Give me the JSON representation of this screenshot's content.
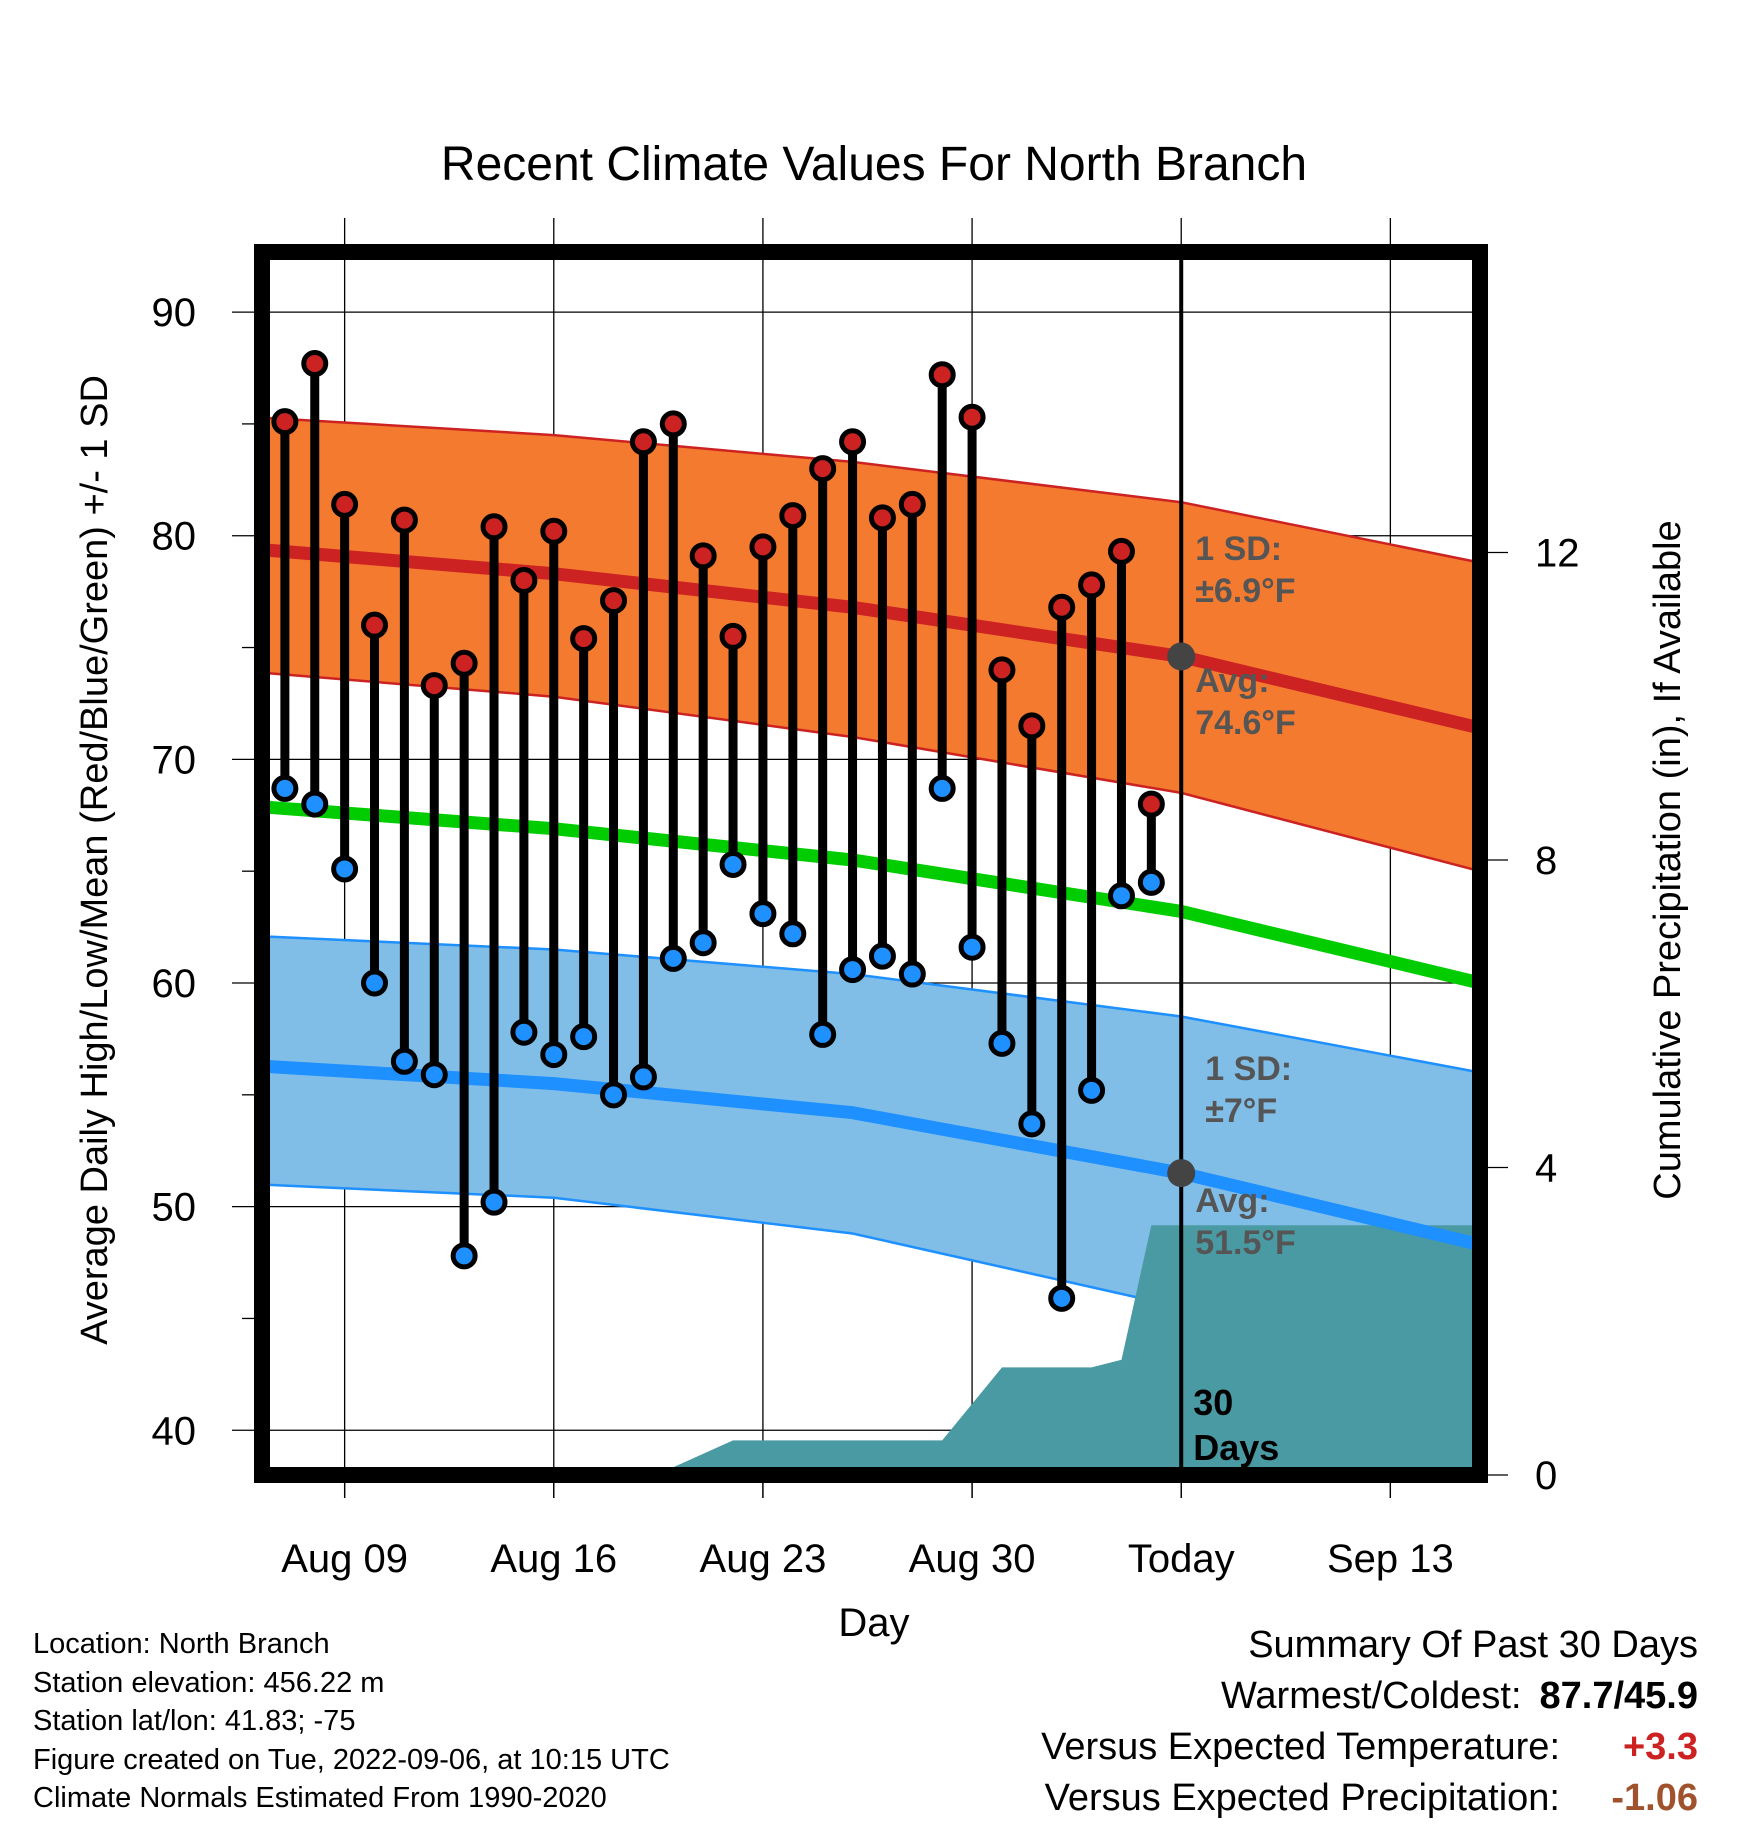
{
  "chart_data": {
    "type": "line",
    "title": "Recent Climate Values For North Branch",
    "xlabel": "Day",
    "ylabel_left": "Average Daily High/Low/Mean (Red/Blue/Green) +/- 1 SD",
    "ylabel_right": "Cumulative Precipitation (in), If Available",
    "ylim_left": [
      38,
      93
    ],
    "ylim_right": [
      0,
      16
    ],
    "xlim": [
      "Aug 06",
      "Sep 16"
    ],
    "x_ticks": [
      {
        "date": "Aug 09",
        "label": "Aug 09"
      },
      {
        "date": "Aug 16",
        "label": "Aug 16"
      },
      {
        "date": "Aug 23",
        "label": "Aug 23"
      },
      {
        "date": "Aug 30",
        "label": "Aug 30"
      },
      {
        "date": "Sep 06",
        "label": "Today"
      },
      {
        "date": "Sep 13",
        "label": "Sep 13"
      }
    ],
    "y_ticks_left": [
      40,
      50,
      60,
      70,
      80,
      90
    ],
    "y_ticks_right": [
      0,
      4,
      8,
      12
    ],
    "grid": true,
    "today": "Sep 06",
    "normals": {
      "dates": [
        "Aug 06",
        "Aug 16",
        "Aug 26",
        "Sep 06",
        "Sep 16"
      ],
      "high_avg": [
        79.4,
        78.3,
        76.8,
        74.6,
        71.4
      ],
      "high_sd_upper": [
        85.3,
        84.5,
        83.3,
        81.5,
        78.8
      ],
      "high_sd_lower": [
        73.9,
        72.8,
        71.0,
        68.5,
        65.0
      ],
      "mean_avg": [
        67.9,
        66.9,
        65.5,
        63.2,
        60.0
      ],
      "low_avg": [
        56.3,
        55.5,
        54.2,
        51.5,
        48.3
      ],
      "low_sd_upper": [
        62.1,
        61.5,
        60.4,
        58.5,
        56.0
      ],
      "low_sd_lower": [
        51.0,
        50.4,
        48.8,
        45.5,
        41.5
      ]
    },
    "series": [
      {
        "name": "Daily High",
        "color": "#cc2222",
        "dates": [
          "Aug 07",
          "Aug 08",
          "Aug 09",
          "Aug 10",
          "Aug 11",
          "Aug 12",
          "Aug 13",
          "Aug 14",
          "Aug 15",
          "Aug 16",
          "Aug 17",
          "Aug 18",
          "Aug 19",
          "Aug 20",
          "Aug 21",
          "Aug 22",
          "Aug 23",
          "Aug 24",
          "Aug 25",
          "Aug 26",
          "Aug 27",
          "Aug 28",
          "Aug 29",
          "Aug 30",
          "Aug 31",
          "Sep 01",
          "Sep 02",
          "Sep 03",
          "Sep 04",
          "Sep 05"
        ],
        "values": [
          85.1,
          87.7,
          81.4,
          76.0,
          80.7,
          73.3,
          74.3,
          80.4,
          78.0,
          80.2,
          75.4,
          77.1,
          84.2,
          85.0,
          79.1,
          75.5,
          79.5,
          80.9,
          83.0,
          84.2,
          80.8,
          81.4,
          87.2,
          85.3,
          74.0,
          71.5,
          76.8,
          77.8,
          79.3,
          68.0
        ]
      },
      {
        "name": "Daily Low",
        "color": "#1e90ff",
        "dates": [
          "Aug 07",
          "Aug 08",
          "Aug 09",
          "Aug 10",
          "Aug 11",
          "Aug 12",
          "Aug 13",
          "Aug 14",
          "Aug 15",
          "Aug 16",
          "Aug 17",
          "Aug 18",
          "Aug 19",
          "Aug 20",
          "Aug 21",
          "Aug 22",
          "Aug 23",
          "Aug 24",
          "Aug 25",
          "Aug 26",
          "Aug 27",
          "Aug 28",
          "Aug 29",
          "Aug 30",
          "Aug 31",
          "Sep 01",
          "Sep 02",
          "Sep 03",
          "Sep 04",
          "Sep 05"
        ],
        "values": [
          68.7,
          68.0,
          65.1,
          60.0,
          56.5,
          55.9,
          47.8,
          50.2,
          57.8,
          56.8,
          57.6,
          55.0,
          55.8,
          61.1,
          61.8,
          65.3,
          63.1,
          62.2,
          57.7,
          60.6,
          61.2,
          60.4,
          68.7,
          61.6,
          57.3,
          53.7,
          45.9,
          55.2,
          63.9,
          64.5
        ]
      },
      {
        "name": "Cumulative Precipitation",
        "color": "#4a9aa3",
        "dates": [
          "Aug 06",
          "Aug 09",
          "Aug 16",
          "Aug 19",
          "Aug 20",
          "Aug 22",
          "Aug 29",
          "Aug 31",
          "Sep 03",
          "Sep 04",
          "Sep 05",
          "Sep 16"
        ],
        "values": [
          0.0,
          0.02,
          0.02,
          0.02,
          0.1,
          0.45,
          0.45,
          1.4,
          1.4,
          1.5,
          3.25,
          3.25
        ]
      }
    ],
    "annotations": {
      "high_sd_label": "1 SD:",
      "high_sd_value": "±6.9°F",
      "high_avg_label": "Avg:",
      "high_avg_value": "74.6°F",
      "low_sd_label": "1 SD:",
      "low_sd_value": "±7°F",
      "low_avg_label": "Avg:",
      "low_avg_value": "51.5°F",
      "period_line1": "30",
      "period_line2": "Days"
    },
    "colors": {
      "high_band": "#f47a30",
      "high_line": "#cc2222",
      "mean_line": "#00cc00",
      "low_band": "#80bee8",
      "low_line": "#1e90ff",
      "precip": "#4a9aa3",
      "today_marker": "#444444"
    }
  },
  "footer_left": {
    "location": "Location: North Branch",
    "elevation": "Station elevation: 456.22 m",
    "latlon": "Station lat/lon: 41.83; -75",
    "created": "Figure created on Tue, 2022-09-06, at 10:15 UTC",
    "normals": "Climate Normals Estimated From 1990-2020"
  },
  "summary": {
    "heading": "Summary Of Past 30 Days",
    "warm_cold_label": "Warmest/Coldest:",
    "warm_cold_value": "87.7/45.9",
    "temp_label": "Versus Expected Temperature:",
    "temp_value": "+3.3",
    "temp_color": "#cc2222",
    "precip_label": "Versus Expected Precipitation:",
    "precip_value": "-1.06",
    "precip_color": "#a0522d"
  }
}
